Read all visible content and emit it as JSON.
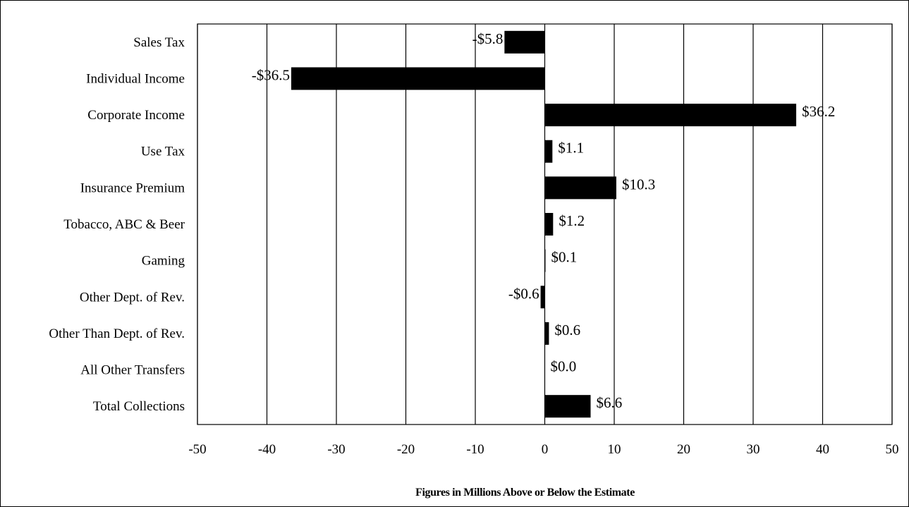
{
  "chart_data": {
    "type": "bar",
    "orientation": "horizontal",
    "categories": [
      "Sales Tax",
      "Individual Income",
      "Corporate Income",
      "Use Tax",
      "Insurance Premium",
      "Tobacco, ABC & Beer",
      "Gaming",
      "Other Dept. of Rev.",
      "Other Than Dept. of Rev.",
      "All Other Transfers",
      "Total Collections"
    ],
    "values": [
      -5.8,
      -36.5,
      36.2,
      1.1,
      10.3,
      1.2,
      0.1,
      -0.6,
      0.6,
      0.0,
      6.6
    ],
    "data_labels": [
      "-$5.8",
      "-$36.5",
      "$36.2",
      "$1.1",
      "$10.3",
      "$1.2",
      "$0.1",
      "-$0.6",
      "$0.6",
      "$0.0",
      "$6.6"
    ],
    "xlabel": "Figures in Millions Above or Below the Estimate",
    "xlim": [
      -50,
      50
    ],
    "xticks": [
      -50,
      -40,
      -30,
      -20,
      -10,
      0,
      10,
      20,
      30,
      40,
      50
    ],
    "xtick_labels": [
      "-50",
      "-40",
      "-30",
      "-20",
      "-10",
      "0",
      "10",
      "20",
      "30",
      "40",
      "50"
    ],
    "grid": "vertical",
    "legend": "none",
    "bar_color": "#000000"
  }
}
